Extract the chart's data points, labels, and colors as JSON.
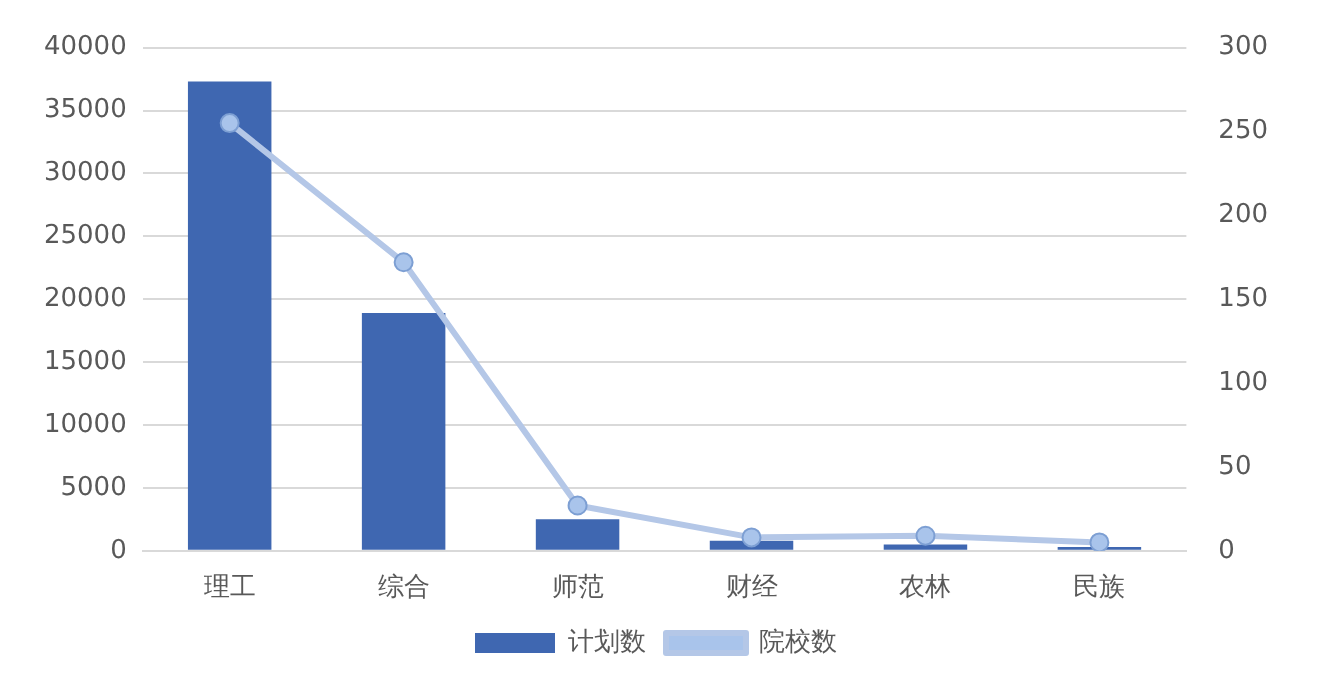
{
  "chart_data": {
    "type": "bar",
    "categories": [
      "理工",
      "综合",
      "师范",
      "财经",
      "农林",
      "民族"
    ],
    "series": [
      {
        "name": "计划数",
        "color": "#3f67b1",
        "values": [
          37300,
          18900,
          2500,
          800,
          500,
          300
        ]
      },
      {
        "name": "院校数",
        "type": "line",
        "axis": "y2",
        "color": "#b4c7e7",
        "marker": "circle",
        "values": [
          255,
          172,
          27,
          8,
          9,
          5
        ]
      }
    ],
    "ylim": [
      0,
      40000
    ],
    "yticks": [
      0,
      5000,
      10000,
      15000,
      20000,
      25000,
      30000,
      35000,
      40000
    ],
    "y2lim": [
      0,
      300
    ],
    "y2ticks": [
      0,
      50,
      100,
      150,
      200,
      250,
      300
    ],
    "grid": "y",
    "legend": "bottom"
  }
}
